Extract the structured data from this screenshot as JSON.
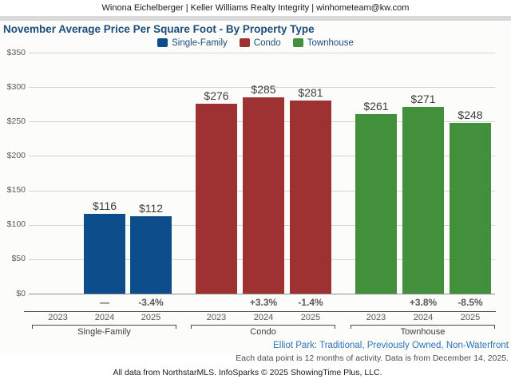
{
  "header": {
    "contact": "Winona Eichelberger | Keller Williams Realty Integrity | winhometeam@kw.com"
  },
  "chart_data": {
    "type": "bar",
    "title": "November Average Price Per Square Foot - By Property Type",
    "xlabel": "",
    "ylabel": "",
    "ylim": [
      0,
      350
    ],
    "ytick_step": 50,
    "ytick_prefix": "$",
    "yticks": [
      0,
      50,
      100,
      150,
      200,
      250,
      300,
      350
    ],
    "grid": true,
    "legend_position": "top",
    "legend": [
      {
        "label": "Single-Family",
        "color": "#0e4d8c"
      },
      {
        "label": "Condo",
        "color": "#9e3132"
      },
      {
        "label": "Townhouse",
        "color": "#42903b"
      }
    ],
    "groups": [
      {
        "label": "Single-Family",
        "color": "#0e4d8c",
        "years": [
          "2023",
          "2024",
          "2025"
        ],
        "values": [
          null,
          116,
          112
        ],
        "value_labels": [
          "",
          "$116",
          "$112"
        ],
        "changes": [
          "",
          "—",
          "-3.4%"
        ]
      },
      {
        "label": "Condo",
        "color": "#9e3132",
        "years": [
          "2023",
          "2024",
          "2025"
        ],
        "values": [
          276,
          285,
          281
        ],
        "value_labels": [
          "$276",
          "$285",
          "$281"
        ],
        "changes": [
          "",
          "+3.3%",
          "-1.4%"
        ]
      },
      {
        "label": "Townhouse",
        "color": "#42903b",
        "years": [
          "2023",
          "2024",
          "2025"
        ],
        "values": [
          261,
          271,
          248
        ],
        "value_labels": [
          "$261",
          "$271",
          "$248"
        ],
        "changes": [
          "",
          "+3.8%",
          "-8.5%"
        ]
      }
    ]
  },
  "footer": {
    "filter_line": "Elliot Park: Traditional, Previously Owned, Non-Waterfront",
    "note_line": "Each data point is 12 months of activity. Data is from December 14, 2025.",
    "attribution": "All data from NorthstarMLS. InfoSparks © 2025 ShowingTime Plus, LLC."
  }
}
